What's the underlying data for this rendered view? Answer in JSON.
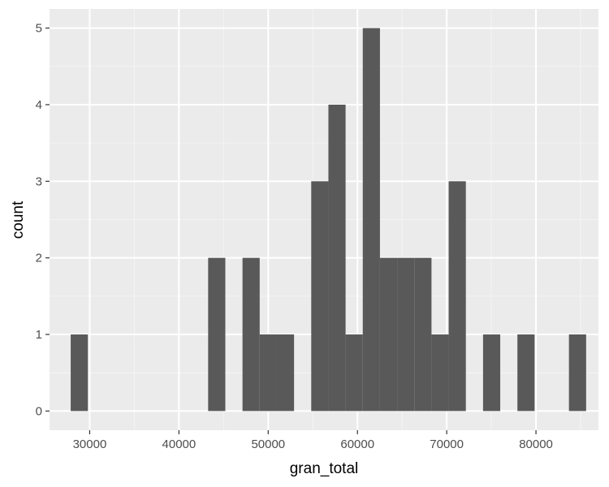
{
  "chart_data": {
    "type": "bar",
    "subtype": "histogram",
    "xlabel": "gran_total",
    "ylabel": "count",
    "xlim": [
      25500,
      87000
    ],
    "ylim": [
      -0.25,
      5.25
    ],
    "x_ticks": [
      30000,
      40000,
      50000,
      60000,
      70000,
      80000
    ],
    "y_ticks": [
      0,
      1,
      2,
      3,
      4,
      5
    ],
    "bin_width": 1925,
    "bins": [
      {
        "x": 28833,
        "count": 1
      },
      {
        "x": 44233,
        "count": 2
      },
      {
        "x": 48083,
        "count": 2
      },
      {
        "x": 50008,
        "count": 1
      },
      {
        "x": 51933,
        "count": 1
      },
      {
        "x": 55783,
        "count": 3
      },
      {
        "x": 57708,
        "count": 4
      },
      {
        "x": 59633,
        "count": 1
      },
      {
        "x": 61558,
        "count": 5
      },
      {
        "x": 63483,
        "count": 2
      },
      {
        "x": 65408,
        "count": 2
      },
      {
        "x": 67333,
        "count": 2
      },
      {
        "x": 69258,
        "count": 1
      },
      {
        "x": 71183,
        "count": 3
      },
      {
        "x": 75033,
        "count": 1
      },
      {
        "x": 78883,
        "count": 1
      },
      {
        "x": 84658,
        "count": 1
      }
    ],
    "empty_bin_count": 0,
    "grid": true,
    "colors": {
      "bar": "#595959",
      "panel_background": "#ebebeb",
      "grid_major": "#ffffff",
      "grid_minor": "#f4f4f4",
      "tick": "#333333"
    }
  }
}
